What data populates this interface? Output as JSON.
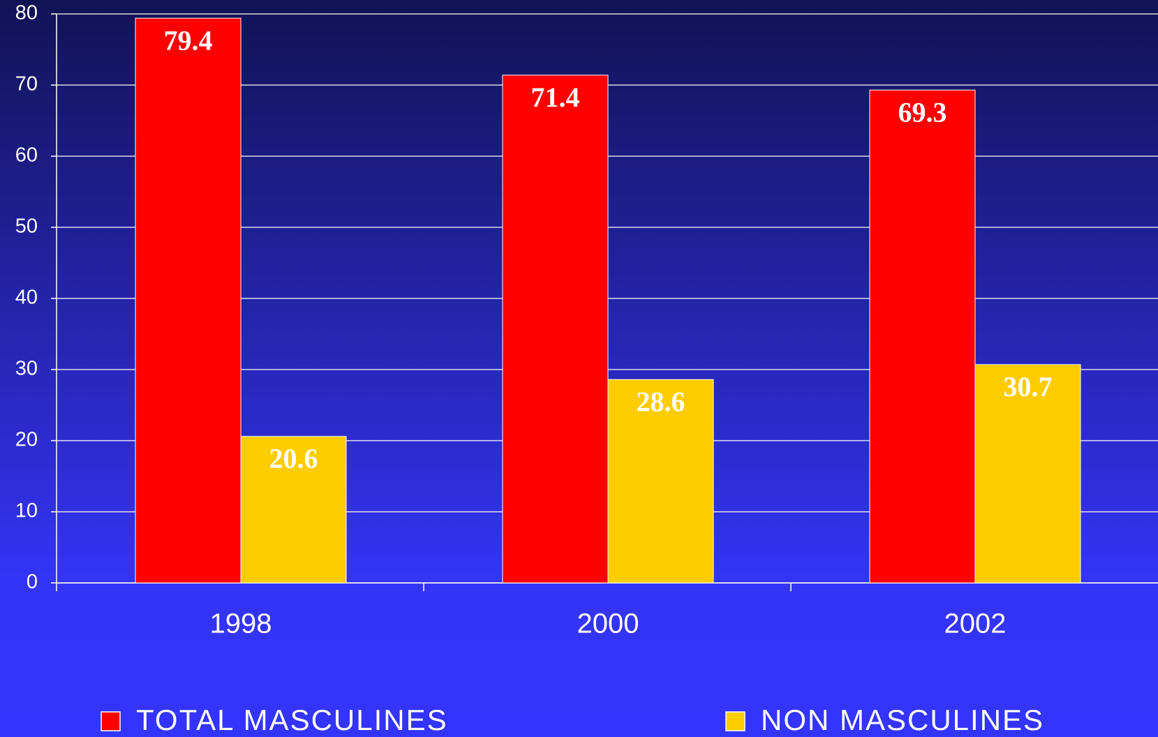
{
  "chart_data": {
    "type": "bar",
    "categories": [
      "1998",
      "2000",
      "2002"
    ],
    "series": [
      {
        "name": "TOTAL MASCULINES",
        "color": "#ff0000",
        "values": [
          79.4,
          71.4,
          69.3
        ]
      },
      {
        "name": "NON MASCULINES",
        "color": "#ffcc00",
        "values": [
          20.6,
          28.6,
          30.7
        ]
      }
    ],
    "ylim": [
      0,
      80
    ],
    "yticks": [
      0,
      10,
      20,
      30,
      40,
      50,
      60,
      70,
      80
    ],
    "grid": true,
    "legend": "bottom"
  }
}
